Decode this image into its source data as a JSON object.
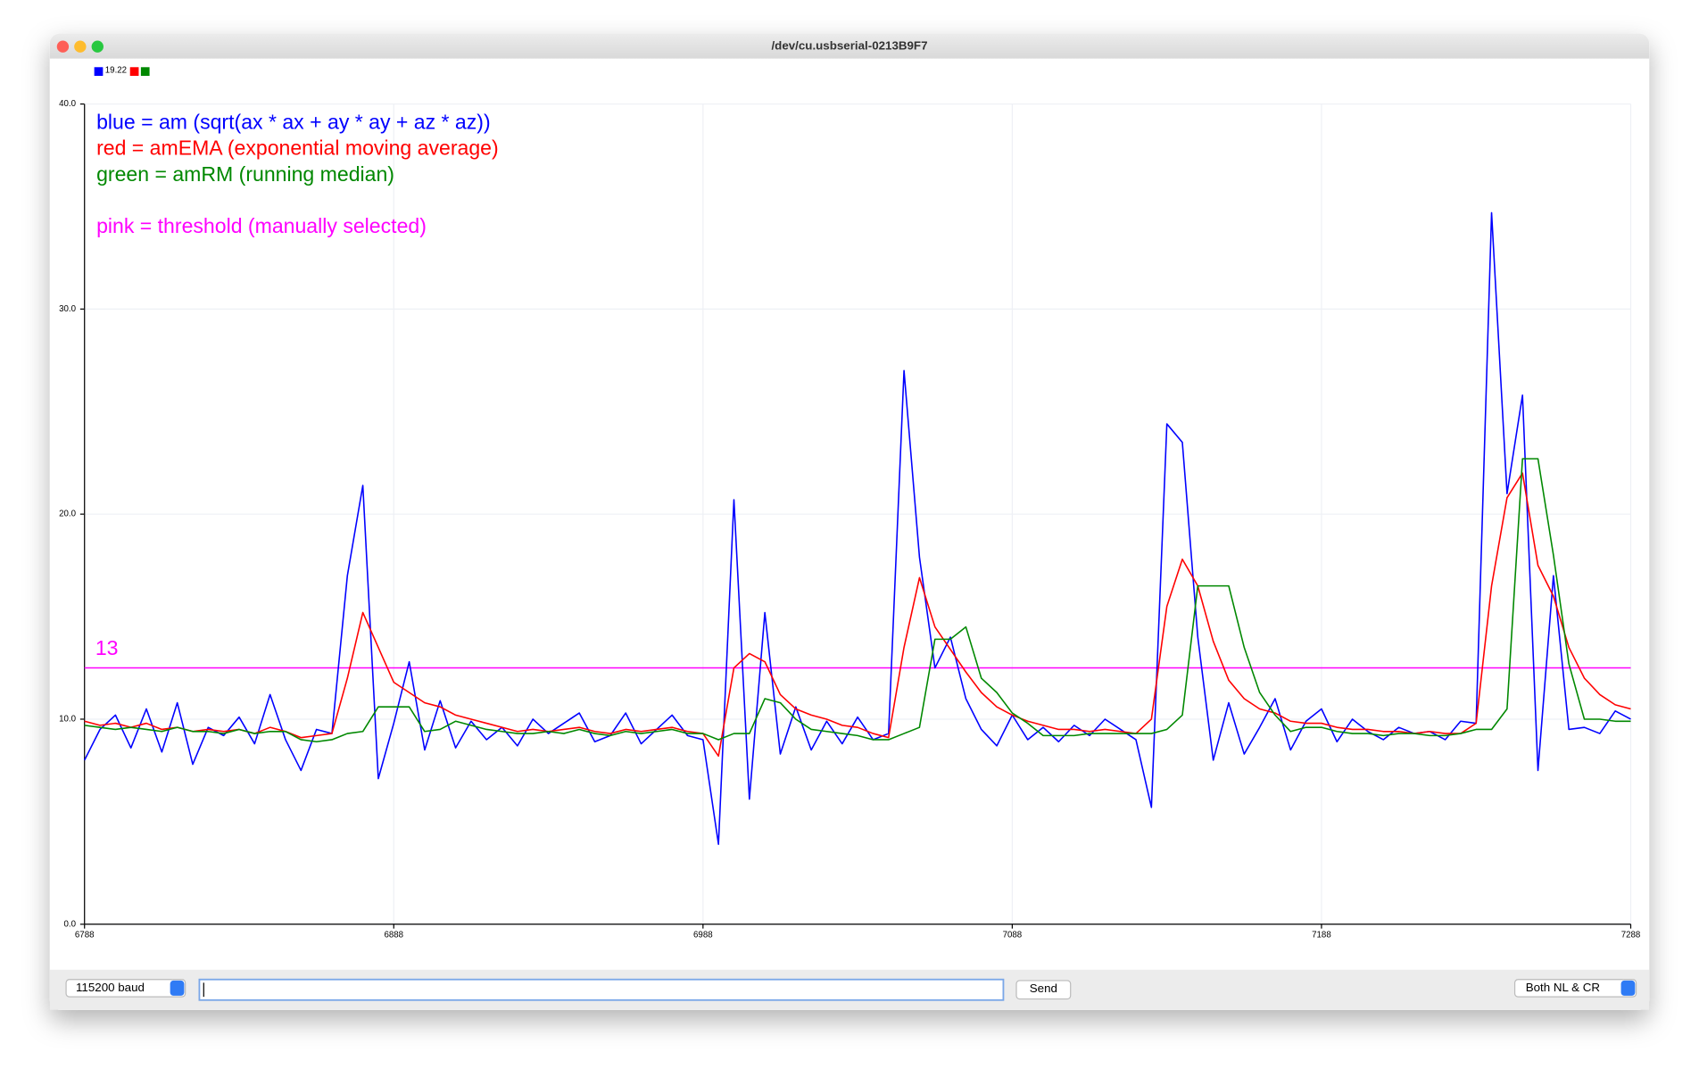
{
  "window_title": "/dev/cu.usbserial-0213B9F7",
  "controls": {
    "baud": "115200 baud",
    "send": "Send",
    "line_ending": "Both NL & CR"
  },
  "chart_data": {
    "type": "line",
    "x": [
      6788,
      6793,
      6798,
      6803,
      6808,
      6813,
      6818,
      6823,
      6828,
      6833,
      6838,
      6843,
      6848,
      6853,
      6858,
      6863,
      6868,
      6873,
      6878,
      6883,
      6888,
      6893,
      6898,
      6903,
      6908,
      6913,
      6918,
      6923,
      6928,
      6933,
      6938,
      6943,
      6948,
      6953,
      6958,
      6963,
      6968,
      6973,
      6978,
      6983,
      6988,
      6993,
      6998,
      7003,
      7008,
      7013,
      7018,
      7023,
      7028,
      7033,
      7038,
      7043,
      7048,
      7053,
      7058,
      7063,
      7068,
      7073,
      7078,
      7083,
      7088,
      7093,
      7098,
      7103,
      7108,
      7113,
      7118,
      7123,
      7128,
      7133,
      7138,
      7143,
      7148,
      7153,
      7158,
      7163,
      7168,
      7173,
      7178,
      7183,
      7188,
      7193,
      7198,
      7203,
      7208,
      7213,
      7218,
      7223,
      7228,
      7233,
      7238,
      7243,
      7248,
      7253,
      7258,
      7263,
      7268,
      7273,
      7278,
      7283,
      7288
    ],
    "series": [
      {
        "name": "19.22",
        "color": "#0000ff",
        "values": [
          8.0,
          9.5,
          10.2,
          8.6,
          10.5,
          8.4,
          10.8,
          7.8,
          9.6,
          9.2,
          10.1,
          8.8,
          11.2,
          9.0,
          7.5,
          9.5,
          9.3,
          17.0,
          21.4,
          7.1,
          9.8,
          12.8,
          8.5,
          10.9,
          8.6,
          9.9,
          9.0,
          9.6,
          8.7,
          10.0,
          9.3,
          9.8,
          10.3,
          8.9,
          9.2,
          10.3,
          8.8,
          9.5,
          10.2,
          9.2,
          9.0,
          3.9,
          20.7,
          6.1,
          15.2,
          8.3,
          10.6,
          8.5,
          9.9,
          8.8,
          10.1,
          9.0,
          9.3,
          27.0,
          17.9,
          12.5,
          14.0,
          11.0,
          9.5,
          8.7,
          10.2,
          9.0,
          9.6,
          8.9,
          9.7,
          9.2,
          10.0,
          9.5,
          9.0,
          5.7,
          24.4,
          23.5,
          14.0,
          8.0,
          10.8,
          8.3,
          9.6,
          11.0,
          8.5,
          9.9,
          10.5,
          8.9,
          10.0,
          9.4,
          9.0,
          9.6,
          9.3,
          9.4,
          9.0,
          9.9,
          9.8,
          34.7,
          21.0,
          25.8,
          7.5,
          17.0,
          9.5,
          9.6,
          9.3,
          10.4,
          10.0
        ]
      },
      {
        "color": "#ff0000",
        "values": [
          9.9,
          9.7,
          9.8,
          9.6,
          9.8,
          9.5,
          9.6,
          9.4,
          9.5,
          9.4,
          9.5,
          9.3,
          9.6,
          9.4,
          9.1,
          9.2,
          9.3,
          12.0,
          15.2,
          13.5,
          11.8,
          11.3,
          10.8,
          10.6,
          10.2,
          10.0,
          9.8,
          9.6,
          9.4,
          9.5,
          9.4,
          9.5,
          9.6,
          9.4,
          9.3,
          9.5,
          9.4,
          9.5,
          9.6,
          9.4,
          9.3,
          8.2,
          12.5,
          13.2,
          12.8,
          11.2,
          10.5,
          10.2,
          10.0,
          9.7,
          9.6,
          9.3,
          9.1,
          13.5,
          16.9,
          14.5,
          13.4,
          12.3,
          11.3,
          10.6,
          10.2,
          9.9,
          9.7,
          9.5,
          9.5,
          9.4,
          9.5,
          9.4,
          9.3,
          10.0,
          15.5,
          17.8,
          16.5,
          13.8,
          11.9,
          11.0,
          10.5,
          10.3,
          9.9,
          9.8,
          9.8,
          9.6,
          9.5,
          9.5,
          9.4,
          9.4,
          9.3,
          9.4,
          9.3,
          9.3,
          9.8,
          16.5,
          20.8,
          22.0,
          17.5,
          16.0,
          13.5,
          12.0,
          11.2,
          10.7,
          10.5
        ]
      },
      {
        "color": "#008800",
        "values": [
          9.7,
          9.6,
          9.5,
          9.6,
          9.5,
          9.4,
          9.6,
          9.4,
          9.4,
          9.3,
          9.5,
          9.3,
          9.4,
          9.4,
          9.0,
          8.9,
          9.0,
          9.3,
          9.4,
          10.6,
          10.6,
          10.6,
          9.4,
          9.5,
          9.9,
          9.7,
          9.5,
          9.4,
          9.3,
          9.3,
          9.4,
          9.3,
          9.5,
          9.3,
          9.2,
          9.4,
          9.3,
          9.4,
          9.5,
          9.3,
          9.3,
          9.0,
          9.3,
          9.3,
          11.0,
          10.8,
          10.0,
          9.5,
          9.4,
          9.3,
          9.2,
          9.0,
          9.0,
          9.3,
          9.6,
          13.9,
          13.9,
          14.5,
          12.0,
          11.3,
          10.3,
          9.8,
          9.2,
          9.2,
          9.2,
          9.3,
          9.3,
          9.3,
          9.3,
          9.3,
          9.5,
          10.2,
          16.5,
          16.5,
          16.5,
          13.5,
          11.3,
          10.2,
          9.4,
          9.6,
          9.6,
          9.4,
          9.3,
          9.3,
          9.2,
          9.3,
          9.3,
          9.2,
          9.2,
          9.3,
          9.5,
          9.5,
          10.5,
          22.7,
          22.7,
          18.0,
          12.7,
          10.0,
          10.0,
          9.9,
          9.9
        ]
      }
    ],
    "threshold": {
      "value": 12.5,
      "label": "13",
      "color": "#ff00ff"
    },
    "annotations": [
      {
        "text": "blue = am (sqrt(ax * ax + ay * ay + az * az))",
        "color": "#0000ff"
      },
      {
        "text": "red = amEMA (exponential moving average)",
        "color": "#ff0000"
      },
      {
        "text": "green = amRM (running median)",
        "color": "#008800"
      },
      {
        "text": "pink = threshold (manually selected)",
        "color": "#ff00ff"
      }
    ],
    "xlim": [
      6788,
      7288
    ],
    "xticks": [
      6788,
      6888,
      6988,
      7088,
      7188,
      7288
    ],
    "ylim": [
      0,
      40
    ],
    "yticks": [
      {
        "value": 0,
        "label": "0.0"
      },
      {
        "value": 10,
        "label": "10.0"
      },
      {
        "value": 20,
        "label": "20.0"
      },
      {
        "value": 30,
        "label": "30.0"
      },
      {
        "value": 40,
        "label": "40.0"
      }
    ],
    "grid": true
  }
}
